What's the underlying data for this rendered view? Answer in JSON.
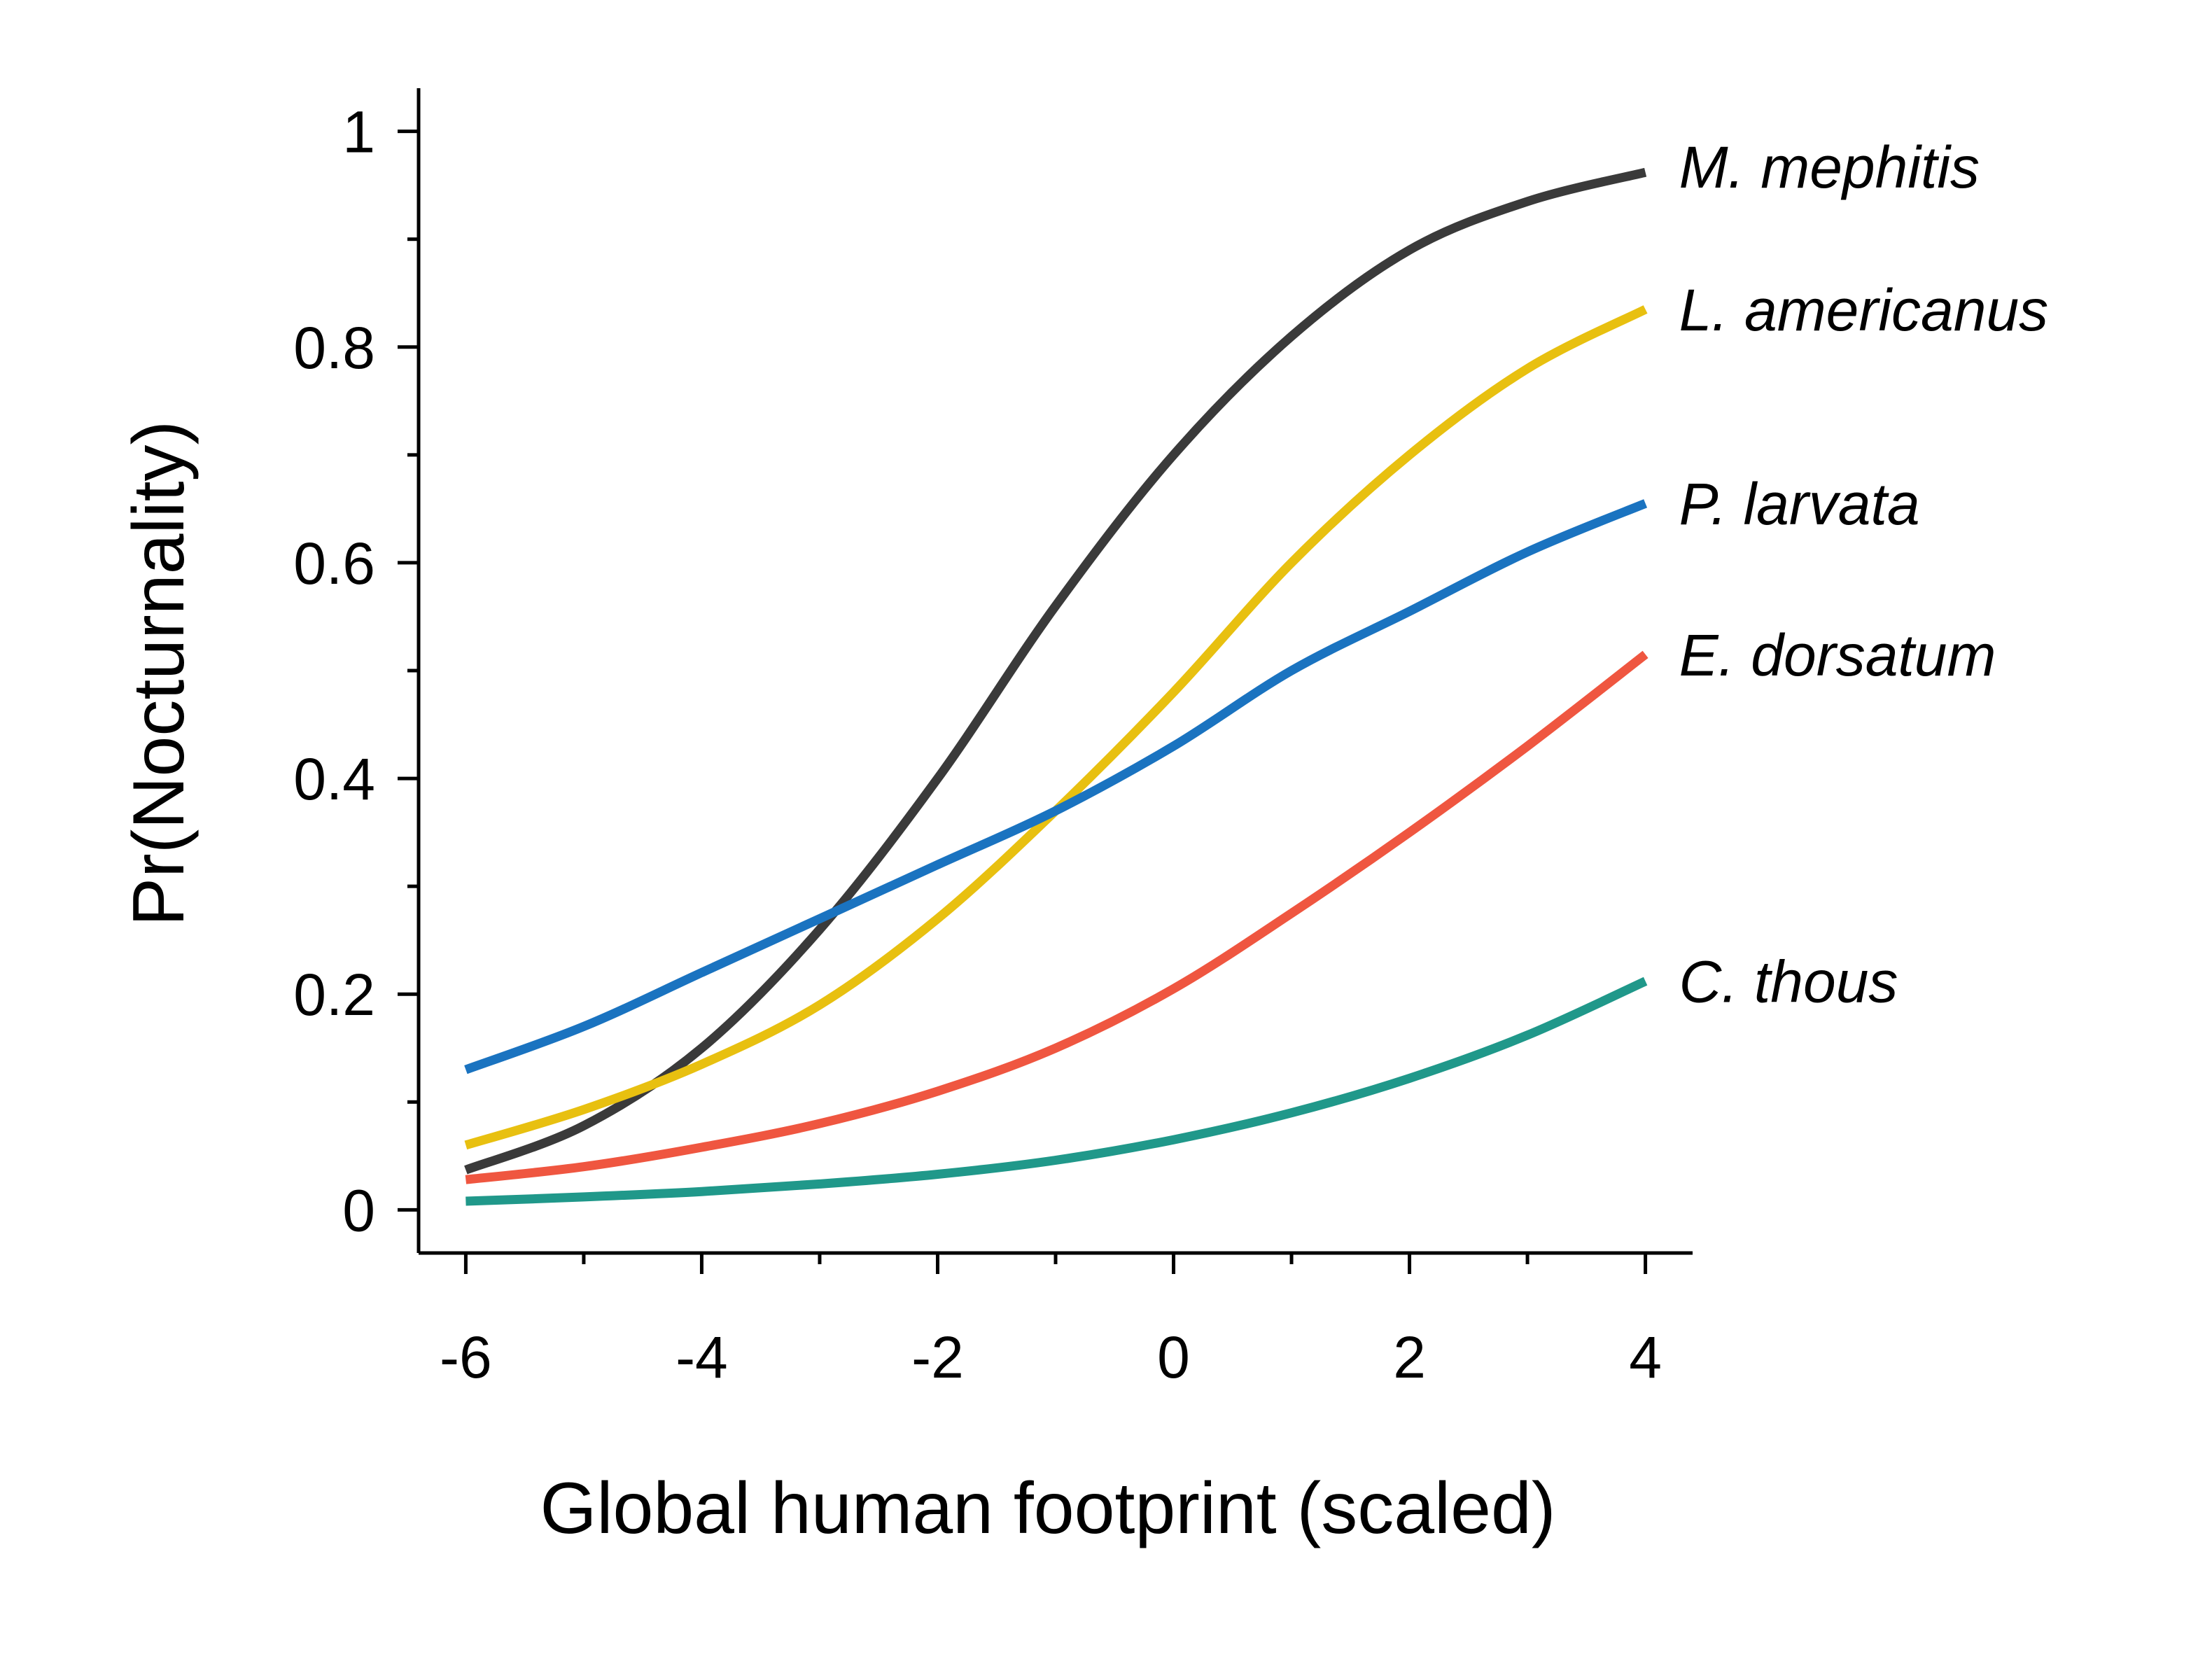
{
  "chart_data": {
    "type": "line",
    "xlabel": "Global human footprint (scaled)",
    "ylabel": "Pr(Nocturnality)",
    "xlim": [
      -6.4,
      4.4
    ],
    "ylim": [
      -0.04,
      1.04
    ],
    "x_ticks": [
      -6,
      -4,
      -2,
      0,
      2,
      4
    ],
    "x_minor_ticks": [
      -5,
      -3,
      -1,
      1,
      3
    ],
    "x_tick_labels": [
      "-6",
      "-4",
      "-2",
      "0",
      "2",
      "4"
    ],
    "y_ticks": [
      0,
      0.2,
      0.4,
      0.6,
      0.8,
      1
    ],
    "y_minor_ticks": [
      0.1,
      0.3,
      0.5,
      0.7,
      0.9
    ],
    "y_tick_labels": [
      "0",
      "0.2",
      "0.4",
      "0.6",
      "0.8",
      "1"
    ],
    "grid": false,
    "legend": "series labels at right end of lines",
    "x": [
      -6,
      -5,
      -4,
      -3,
      -2,
      -1,
      0,
      1,
      2,
      3,
      4
    ],
    "series": [
      {
        "name": "M. mephitis",
        "color": "#3a3a3a",
        "values": [
          0.037,
          0.078,
          0.15,
          0.26,
          0.4,
          0.56,
          0.7,
          0.81,
          0.89,
          0.935,
          0.962
        ]
      },
      {
        "name": "L. americanus",
        "color": "#e8c010",
        "values": [
          0.06,
          0.093,
          0.135,
          0.19,
          0.27,
          0.37,
          0.48,
          0.6,
          0.7,
          0.78,
          0.835
        ]
      },
      {
        "name": "P. larvata",
        "color": "#1a73c0",
        "values": [
          0.13,
          0.17,
          0.22,
          0.27,
          0.32,
          0.37,
          0.43,
          0.5,
          0.555,
          0.61,
          0.655
        ]
      },
      {
        "name": "E. dorsatum",
        "color": "#ef5640",
        "values": [
          0.028,
          0.04,
          0.058,
          0.08,
          0.11,
          0.15,
          0.205,
          0.275,
          0.35,
          0.43,
          0.515
        ]
      },
      {
        "name": "C. thous",
        "color": "#20988a",
        "values": [
          0.008,
          0.012,
          0.017,
          0.024,
          0.033,
          0.046,
          0.065,
          0.09,
          0.122,
          0.162,
          0.212
        ]
      }
    ]
  }
}
